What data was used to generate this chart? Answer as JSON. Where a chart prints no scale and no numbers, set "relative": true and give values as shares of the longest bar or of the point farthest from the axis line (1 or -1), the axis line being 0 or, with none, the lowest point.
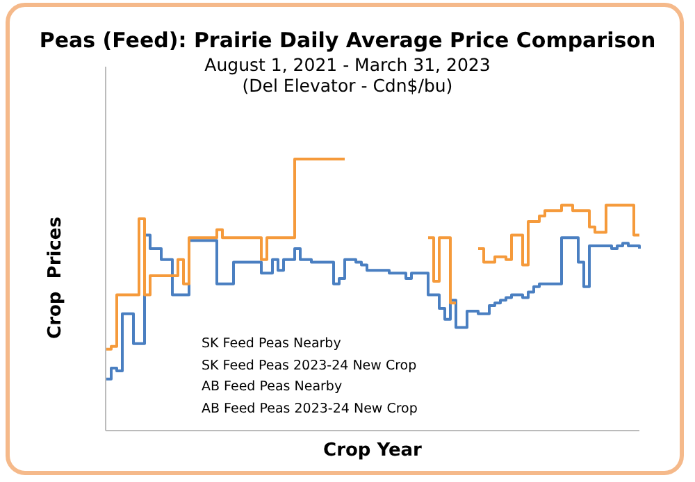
{
  "chart_data": {
    "type": "step",
    "title": "Peas (Feed): Prairie Daily Average Price Comparison",
    "subtitle": "August 1, 2021 - March 31, 2023\n(Del Elevator - Cdn$/bu)",
    "xlabel": "Crop Year",
    "ylabel": "Crop  Prices",
    "relative": true,
    "legend": false,
    "grid": false,
    "annotations": [
      "SK Feed Peas Nearby",
      "SK Feed Peas 2023-24 New Crop",
      "AB Feed Peas Nearby",
      "AB Feed Peas 2023-24 New Crop"
    ],
    "categories": [
      null,
      null,
      null,
      null,
      null,
      null,
      null,
      null,
      null,
      null,
      null,
      null,
      null,
      null,
      null,
      null,
      null,
      null,
      null,
      null,
      null,
      null,
      null,
      null,
      null,
      null,
      null,
      null,
      null,
      null,
      null,
      null,
      null,
      null,
      null,
      null,
      null,
      null,
      null,
      null,
      null,
      null,
      null,
      null,
      null,
      null,
      null,
      null,
      null,
      null,
      null,
      null,
      null,
      null,
      null,
      null,
      null,
      null,
      null,
      null,
      null,
      null,
      null,
      null,
      null,
      null,
      null,
      null,
      null,
      null,
      null,
      null,
      null,
      null,
      null,
      null,
      null,
      null,
      null,
      null,
      null,
      null,
      null,
      null,
      null,
      null,
      null,
      null,
      null,
      null,
      null,
      null,
      null,
      null,
      null,
      null,
      null
    ],
    "series": [
      {
        "color": "#4a7fc1",
        "values": [
          0.19,
          0.23,
          0.22,
          0.43,
          0.43,
          0.32,
          0.32,
          0.72,
          0.67,
          0.67,
          0.63,
          0.63,
          0.5,
          0.5,
          0.5,
          0.7,
          0.7,
          0.7,
          0.7,
          0.7,
          0.54,
          0.54,
          0.54,
          0.62,
          0.62,
          0.62,
          0.62,
          0.62,
          0.58,
          0.58,
          0.63,
          0.59,
          0.63,
          0.63,
          0.67,
          0.63,
          0.63,
          0.62,
          0.62,
          0.62,
          0.62,
          0.54,
          0.56,
          0.63,
          0.63,
          0.62,
          0.61,
          0.59,
          0.59,
          0.59,
          0.59,
          0.58,
          0.58,
          0.58,
          0.56,
          0.58,
          0.58,
          0.58,
          0.5,
          0.5,
          0.45,
          0.41,
          0.48,
          0.38,
          0.38,
          0.44,
          0.44,
          0.43,
          0.43,
          0.46,
          0.47,
          0.48,
          0.49,
          0.5,
          0.5,
          0.49,
          0.51,
          0.53,
          0.54,
          0.54,
          0.54,
          0.54,
          0.71,
          0.71,
          0.71,
          0.62,
          0.53,
          0.68,
          0.68,
          0.68,
          0.68,
          0.67,
          0.68,
          0.69,
          0.68,
          0.68,
          0.67
        ]
      },
      {
        "color": "#f59a3b",
        "values": [
          0.3,
          0.31,
          0.5,
          0.5,
          0.5,
          0.5,
          0.78,
          0.5,
          0.57,
          0.57,
          0.57,
          0.57,
          0.57,
          0.63,
          0.54,
          0.71,
          0.71,
          0.71,
          0.71,
          0.71,
          0.74,
          0.71,
          0.71,
          0.71,
          0.71,
          0.71,
          0.71,
          0.71,
          0.63,
          0.71,
          0.71,
          0.71,
          0.71,
          0.71,
          1,
          1,
          1,
          1,
          1,
          1,
          1,
          1,
          1,
          1,
          null,
          null,
          null,
          null,
          null,
          null,
          null,
          null,
          null,
          null,
          null,
          null,
          null,
          null,
          0.71,
          0.55,
          0.71,
          0.71,
          0.47,
          0.47,
          null,
          null,
          null,
          0.67,
          0.62,
          0.62,
          0.64,
          0.64,
          0.63,
          0.72,
          0.72,
          0.61,
          0.77,
          0.77,
          0.79,
          0.81,
          0.81,
          0.81,
          0.83,
          0.83,
          0.81,
          0.81,
          0.81,
          0.75,
          0.73,
          0.73,
          0.83,
          0.83,
          0.83,
          0.83,
          0.83,
          0.72,
          0.72
        ]
      }
    ]
  }
}
